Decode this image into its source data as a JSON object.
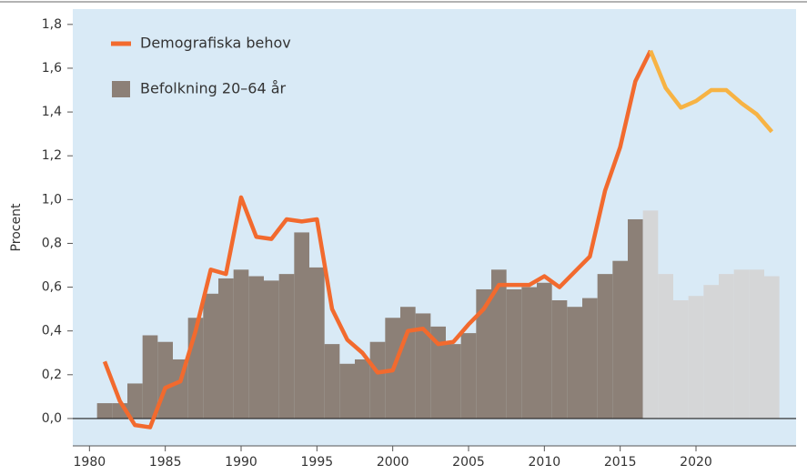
{
  "chart_data": {
    "type": "bar_line",
    "y_label": "Procent",
    "x": [
      1981,
      1982,
      1983,
      1984,
      1985,
      1986,
      1987,
      1988,
      1989,
      1990,
      1991,
      1992,
      1993,
      1994,
      1995,
      1996,
      1997,
      1998,
      1999,
      2000,
      2001,
      2002,
      2003,
      2004,
      2005,
      2006,
      2007,
      2008,
      2009,
      2010,
      2011,
      2012,
      2013,
      2014,
      2015,
      2016,
      2017,
      2018,
      2019,
      2020,
      2021,
      2022,
      2023,
      2024,
      2025
    ],
    "series": [
      {
        "name": "Demografiska behov",
        "type": "line",
        "color": "#f26a2e",
        "forecast_color": "#f7b344",
        "forecast_start": 2017,
        "values": [
          0.26,
          0.08,
          -0.03,
          -0.04,
          0.14,
          0.17,
          0.4,
          0.68,
          0.66,
          1.01,
          0.83,
          0.82,
          0.91,
          0.9,
          0.91,
          0.5,
          0.36,
          0.3,
          0.21,
          0.22,
          0.4,
          0.41,
          0.34,
          0.35,
          0.43,
          0.5,
          0.61,
          0.61,
          0.61,
          0.65,
          0.6,
          0.67,
          0.74,
          1.04,
          1.24,
          1.54,
          1.68,
          1.51,
          1.42,
          1.45,
          1.5,
          1.5,
          1.44,
          1.39,
          1.31
        ]
      },
      {
        "name": "Befolkning 20–64 år",
        "type": "bar",
        "color": "#8c8077",
        "forecast_color": "#d5d6d7",
        "forecast_start": 2017,
        "values": [
          0.07,
          0.07,
          0.16,
          0.38,
          0.35,
          0.27,
          0.46,
          0.57,
          0.64,
          0.68,
          0.65,
          0.63,
          0.66,
          0.85,
          0.69,
          0.34,
          0.25,
          0.27,
          0.35,
          0.46,
          0.51,
          0.48,
          0.42,
          0.34,
          0.39,
          0.59,
          0.68,
          0.59,
          0.6,
          0.62,
          0.54,
          0.51,
          0.55,
          0.66,
          0.72,
          0.91,
          0.95,
          0.66,
          0.54,
          0.56,
          0.61,
          0.66,
          0.68,
          0.68,
          0.65
        ]
      }
    ],
    "xlim": [
      1978.9,
      2026.6
    ],
    "ylim": [
      -0.125,
      1.87
    ],
    "xticks": [
      1980,
      1985,
      1990,
      1995,
      2000,
      2005,
      2010,
      2015,
      2020
    ],
    "yticks": [
      {
        "value": 0,
        "label": "0,0"
      },
      {
        "value": 0.2,
        "label": "0,2"
      },
      {
        "value": 0.4,
        "label": "0,4"
      },
      {
        "value": 0.6,
        "label": "0,6"
      },
      {
        "value": 0.8,
        "label": "0,8"
      },
      {
        "value": 1.0,
        "label": "1,0"
      },
      {
        "value": 1.2,
        "label": "1,2"
      },
      {
        "value": 1.4,
        "label": "1,4"
      },
      {
        "value": 1.6,
        "label": "1,6"
      },
      {
        "value": 1.8,
        "label": "1,8"
      }
    ],
    "background": "#d9eaf6",
    "legend": "upper left"
  }
}
